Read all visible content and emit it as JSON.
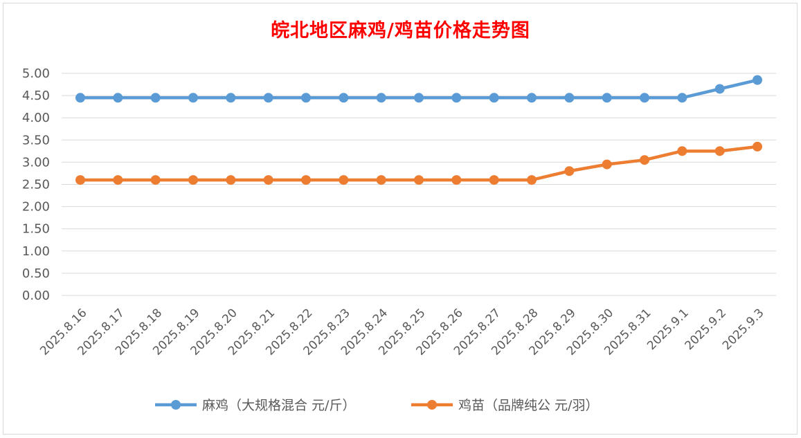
{
  "chart_data": {
    "type": "line",
    "title": "皖北地区麻鸡/鸡苗价格走势图",
    "xlabel": "",
    "ylabel": "",
    "categories": [
      "2025.8.16",
      "2025.8.17",
      "2025.8.18",
      "2025.8.19",
      "2025.8.20",
      "2025.8.21",
      "2025.8.22",
      "2025.8.23",
      "2025.8.24",
      "2025.8.25",
      "2025.8.26",
      "2025.8.27",
      "2025.8.28",
      "2025.8.29",
      "2025.8.30",
      "2025.8.31",
      "2025.9.1",
      "2025.9.2",
      "2025.9.3"
    ],
    "ylim": [
      0,
      5
    ],
    "yticks": [
      "0.00",
      "0.50",
      "1.00",
      "1.50",
      "2.00",
      "2.50",
      "3.00",
      "3.50",
      "4.00",
      "4.50",
      "5.00"
    ],
    "grid": true,
    "legend_position": "bottom",
    "series": [
      {
        "name": "麻鸡（大规格混合 元/斤）",
        "color": "#5b9bd5",
        "values": [
          4.45,
          4.45,
          4.45,
          4.45,
          4.45,
          4.45,
          4.45,
          4.45,
          4.45,
          4.45,
          4.45,
          4.45,
          4.45,
          4.45,
          4.45,
          4.45,
          4.45,
          4.65,
          4.85
        ]
      },
      {
        "name": "鸡苗（品牌纯公 元/羽）",
        "color": "#ed7d31",
        "values": [
          2.6,
          2.6,
          2.6,
          2.6,
          2.6,
          2.6,
          2.6,
          2.6,
          2.6,
          2.6,
          2.6,
          2.6,
          2.6,
          2.8,
          2.95,
          3.05,
          3.25,
          3.25,
          3.35
        ]
      }
    ]
  }
}
